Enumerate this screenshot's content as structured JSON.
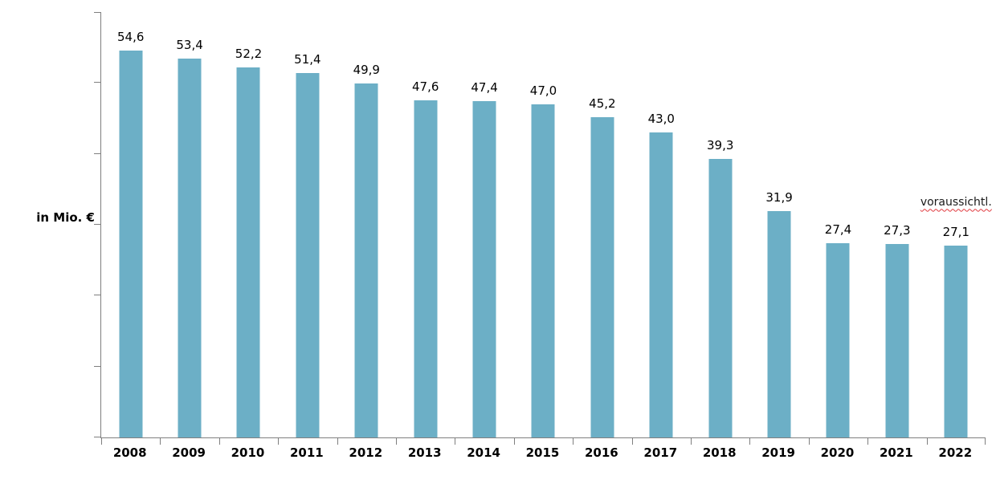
{
  "chart_data": {
    "type": "bar",
    "title": "",
    "xlabel": "",
    "ylabel": "in Mio. €",
    "categories": [
      "2008",
      "2009",
      "2010",
      "2011",
      "2012",
      "2013",
      "2014",
      "2015",
      "2016",
      "2017",
      "2018",
      "2019",
      "2020",
      "2021",
      "2022"
    ],
    "values": [
      54.6,
      53.4,
      52.2,
      51.4,
      49.9,
      47.6,
      47.4,
      47.0,
      45.2,
      43.0,
      39.3,
      31.9,
      27.4,
      27.3,
      27.1
    ],
    "value_labels": [
      "54,6",
      "53,4",
      "52,2",
      "51,4",
      "49,9",
      "47,6",
      "47,4",
      "47,0",
      "45,2",
      "43,0",
      "39,3",
      "31,9",
      "27,4",
      "27,3",
      "27,1"
    ],
    "annotation": {
      "text": "voraussichtl.",
      "category": "2022",
      "style": "red-wavy-underline"
    },
    "ylim": [
      0,
      60
    ],
    "ytick_step": 10,
    "y_axis_labels_shown": false,
    "grid": false,
    "legend": false,
    "bar_color": "#6cafc6",
    "axis_color": "#7f7f7f",
    "label_color": "#000000",
    "annotation_underline_color": "#e0393e",
    "background_color": "#ffffff"
  }
}
